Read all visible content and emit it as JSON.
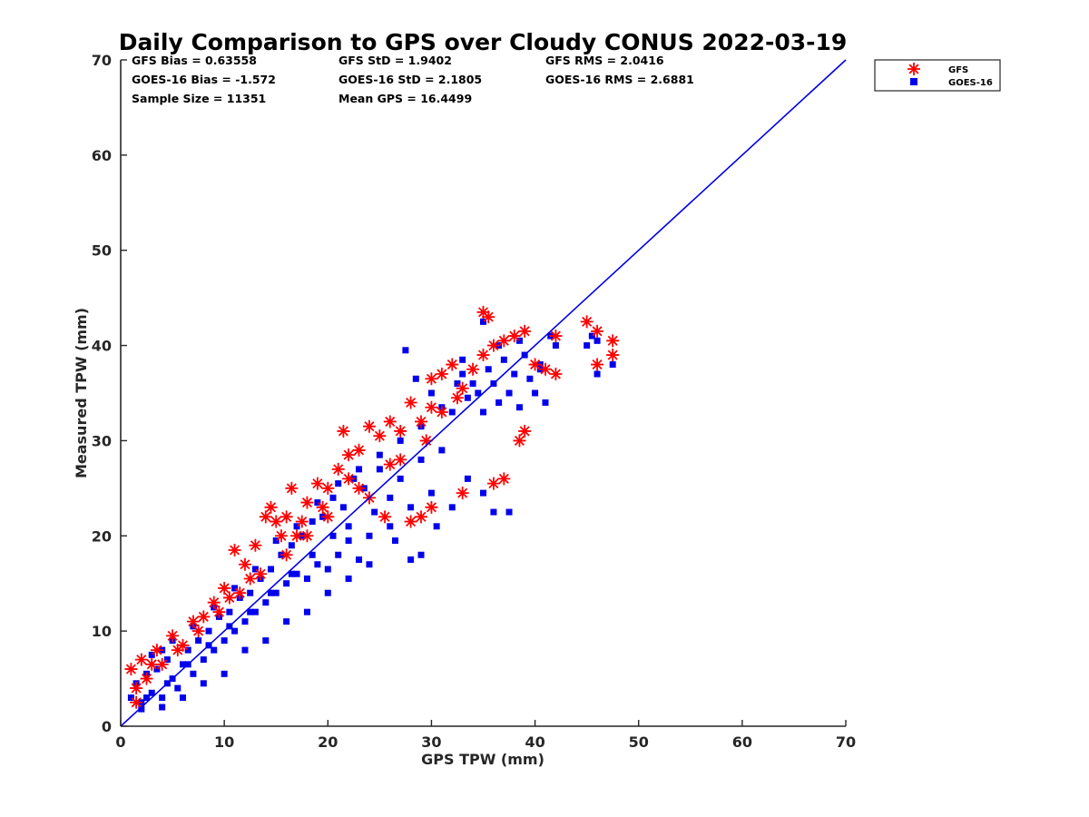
{
  "chart_data": {
    "type": "scatter",
    "title": "Daily Comparison to GPS over Cloudy CONUS 2022-03-19",
    "xlabel": "GPS TPW (mm)",
    "ylabel": "Measured TPW (mm)",
    "xlim": [
      0,
      70
    ],
    "ylim": [
      0,
      70
    ],
    "xticks": [
      "0",
      "10",
      "20",
      "30",
      "40",
      "50",
      "60",
      "70"
    ],
    "yticks": [
      "0",
      "10",
      "20",
      "30",
      "40",
      "50",
      "60",
      "70"
    ],
    "grid": false,
    "legend_position": "outside-top-right",
    "reference_line": {
      "x": [
        0,
        70
      ],
      "y": [
        0,
        70
      ],
      "color": "#0000e6"
    },
    "stats": [
      "GFS Bias = 0.63558",
      "GFS StD = 1.9402",
      "GFS RMS = 2.0416",
      "GOES-16 Bias = -1.572",
      "GOES-16 StD = 2.1805",
      "GOES-16 RMS = 2.6881",
      "Sample Size = 11351",
      "Mean GPS = 16.4499"
    ],
    "series": [
      {
        "name": "GFS",
        "marker": "asterisk",
        "color": "#ff0000",
        "points": [
          [
            1.0,
            6.0
          ],
          [
            1.5,
            4.0
          ],
          [
            2.0,
            7.0
          ],
          [
            3.0,
            6.5
          ],
          [
            3.5,
            8.0
          ],
          [
            5.0,
            9.5
          ],
          [
            6.0,
            8.5
          ],
          [
            7.0,
            11.0
          ],
          [
            8.0,
            11.5
          ],
          [
            9.0,
            13.0
          ],
          [
            10.0,
            14.5
          ],
          [
            11.0,
            18.5
          ],
          [
            12.0,
            17.0
          ],
          [
            13.0,
            19.0
          ],
          [
            14.0,
            22.0
          ],
          [
            14.5,
            23.0
          ],
          [
            15.0,
            21.5
          ],
          [
            16.0,
            22.0
          ],
          [
            16.5,
            25.0
          ],
          [
            17.0,
            20.0
          ],
          [
            18.0,
            23.5
          ],
          [
            19.0,
            25.5
          ],
          [
            20.0,
            25.0
          ],
          [
            21.0,
            27.0
          ],
          [
            21.5,
            31.0
          ],
          [
            22.0,
            28.5
          ],
          [
            23.0,
            29.0
          ],
          [
            24.0,
            31.5
          ],
          [
            25.0,
            30.5
          ],
          [
            26.0,
            32.0
          ],
          [
            27.0,
            31.0
          ],
          [
            28.0,
            34.0
          ],
          [
            29.0,
            32.0
          ],
          [
            30.0,
            33.5
          ],
          [
            30.0,
            36.5
          ],
          [
            31.0,
            37.0
          ],
          [
            32.0,
            38.0
          ],
          [
            33.0,
            35.5
          ],
          [
            34.0,
            37.5
          ],
          [
            35.0,
            39.0
          ],
          [
            35.0,
            43.5
          ],
          [
            35.5,
            43.0
          ],
          [
            36.0,
            40.0
          ],
          [
            37.0,
            40.5
          ],
          [
            38.0,
            41.0
          ],
          [
            39.0,
            41.5
          ],
          [
            40.0,
            38.0
          ],
          [
            41.0,
            37.5
          ],
          [
            42.0,
            41.0
          ],
          [
            42.0,
            37.0
          ],
          [
            45.0,
            42.5
          ],
          [
            46.0,
            41.5
          ],
          [
            46.0,
            38.0
          ],
          [
            47.5,
            40.5
          ],
          [
            47.5,
            39.0
          ],
          [
            38.5,
            30.0
          ],
          [
            39.0,
            31.0
          ],
          [
            37.0,
            26.0
          ],
          [
            36.0,
            25.5
          ],
          [
            33.0,
            24.5
          ],
          [
            29.0,
            22.0
          ],
          [
            30.0,
            23.0
          ],
          [
            28.0,
            21.5
          ],
          [
            25.5,
            22.0
          ],
          [
            24.0,
            24.0
          ],
          [
            22.0,
            26.0
          ],
          [
            20.0,
            22.0
          ],
          [
            18.0,
            20.0
          ],
          [
            16.0,
            18.0
          ],
          [
            13.5,
            16.0
          ],
          [
            11.5,
            14.0
          ],
          [
            9.5,
            12.0
          ],
          [
            7.5,
            10.0
          ],
          [
            5.5,
            8.0
          ],
          [
            4.0,
            6.5
          ],
          [
            2.5,
            5.0
          ],
          [
            1.5,
            2.5
          ],
          [
            31.0,
            33.0
          ],
          [
            32.5,
            34.5
          ],
          [
            27.0,
            28.0
          ],
          [
            29.5,
            30.0
          ],
          [
            26.0,
            27.5
          ],
          [
            23.0,
            25.0
          ],
          [
            19.5,
            23.0
          ],
          [
            17.5,
            21.5
          ],
          [
            15.5,
            20.0
          ],
          [
            12.5,
            15.5
          ],
          [
            10.5,
            13.5
          ]
        ]
      },
      {
        "name": "GOES-16",
        "marker": "square",
        "color": "#0000ee",
        "points": [
          [
            1.0,
            3.0
          ],
          [
            1.5,
            4.5
          ],
          [
            2.0,
            2.5
          ],
          [
            2.5,
            5.5
          ],
          [
            3.0,
            3.5
          ],
          [
            3.5,
            6.0
          ],
          [
            4.0,
            3.0
          ],
          [
            4.5,
            7.0
          ],
          [
            5.0,
            5.0
          ],
          [
            5.5,
            4.0
          ],
          [
            6.0,
            6.5
          ],
          [
            6.5,
            8.0
          ],
          [
            7.0,
            5.5
          ],
          [
            7.5,
            9.0
          ],
          [
            8.0,
            7.0
          ],
          [
            8.5,
            10.0
          ],
          [
            9.0,
            8.0
          ],
          [
            9.5,
            11.5
          ],
          [
            10.0,
            9.0
          ],
          [
            10.5,
            12.0
          ],
          [
            11.0,
            10.0
          ],
          [
            11.5,
            13.5
          ],
          [
            12.0,
            11.0
          ],
          [
            12.5,
            14.0
          ],
          [
            13.0,
            12.0
          ],
          [
            13.5,
            15.5
          ],
          [
            14.0,
            13.0
          ],
          [
            14.5,
            16.5
          ],
          [
            15.0,
            14.0
          ],
          [
            15.5,
            18.0
          ],
          [
            16.0,
            15.0
          ],
          [
            16.5,
            19.0
          ],
          [
            17.0,
            16.0
          ],
          [
            17.5,
            20.0
          ],
          [
            18.0,
            15.5
          ],
          [
            18.5,
            21.5
          ],
          [
            19.0,
            17.0
          ],
          [
            19.5,
            22.0
          ],
          [
            20.0,
            16.5
          ],
          [
            20.5,
            24.0
          ],
          [
            21.0,
            18.0
          ],
          [
            21.5,
            23.0
          ],
          [
            22.0,
            19.5
          ],
          [
            22.5,
            26.0
          ],
          [
            23.0,
            17.5
          ],
          [
            23.5,
            25.0
          ],
          [
            24.0,
            20.0
          ],
          [
            25.0,
            27.0
          ],
          [
            26.0,
            21.0
          ],
          [
            27.0,
            26.0
          ],
          [
            27.5,
            39.5
          ],
          [
            28.0,
            23.0
          ],
          [
            29.0,
            28.0
          ],
          [
            29.0,
            18.0
          ],
          [
            30.0,
            24.5
          ],
          [
            31.0,
            29.0
          ],
          [
            32.0,
            33.0
          ],
          [
            32.5,
            36.0
          ],
          [
            33.0,
            37.0
          ],
          [
            33.5,
            34.5
          ],
          [
            34.0,
            36.0
          ],
          [
            34.5,
            35.0
          ],
          [
            35.0,
            42.5
          ],
          [
            35.0,
            33.0
          ],
          [
            35.5,
            37.5
          ],
          [
            36.0,
            36.0
          ],
          [
            36.5,
            34.0
          ],
          [
            37.0,
            38.5
          ],
          [
            37.5,
            35.0
          ],
          [
            38.0,
            37.0
          ],
          [
            38.5,
            33.5
          ],
          [
            39.0,
            39.0
          ],
          [
            39.5,
            36.5
          ],
          [
            40.0,
            35.0
          ],
          [
            40.5,
            38.0
          ],
          [
            41.0,
            34.0
          ],
          [
            41.5,
            41.0
          ],
          [
            42.0,
            40.0
          ],
          [
            45.0,
            40.0
          ],
          [
            45.5,
            41.0
          ],
          [
            46.0,
            37.0
          ],
          [
            46.0,
            40.5
          ],
          [
            47.5,
            38.0
          ],
          [
            37.5,
            22.5
          ],
          [
            36.0,
            22.5
          ],
          [
            35.0,
            24.5
          ],
          [
            33.5,
            26.0
          ],
          [
            32.0,
            23.0
          ],
          [
            30.5,
            21.0
          ],
          [
            28.0,
            17.5
          ],
          [
            26.5,
            19.5
          ],
          [
            24.0,
            17.0
          ],
          [
            22.0,
            15.5
          ],
          [
            20.0,
            14.0
          ],
          [
            18.0,
            12.0
          ],
          [
            16.0,
            11.0
          ],
          [
            14.0,
            9.0
          ],
          [
            12.0,
            8.0
          ],
          [
            10.0,
            5.5
          ],
          [
            8.0,
            4.5
          ],
          [
            6.0,
            3.0
          ],
          [
            4.0,
            2.0
          ],
          [
            2.0,
            1.8
          ],
          [
            5.0,
            9.0
          ],
          [
            4.0,
            8.0
          ],
          [
            3.0,
            7.5
          ],
          [
            7.0,
            10.5
          ],
          [
            9.0,
            12.5
          ],
          [
            11.0,
            14.5
          ],
          [
            13.0,
            16.5
          ],
          [
            15.0,
            19.5
          ],
          [
            17.0,
            21.0
          ],
          [
            19.0,
            23.5
          ],
          [
            21.0,
            25.5
          ],
          [
            23.0,
            27.0
          ],
          [
            25.0,
            28.5
          ],
          [
            27.0,
            30.0
          ],
          [
            29.0,
            31.5
          ],
          [
            31.0,
            33.5
          ],
          [
            30.0,
            35.0
          ],
          [
            28.5,
            36.5
          ],
          [
            33.0,
            38.5
          ],
          [
            36.5,
            40.0
          ],
          [
            38.5,
            40.5
          ],
          [
            40.5,
            37.5
          ],
          [
            22.0,
            21.0
          ],
          [
            24.5,
            22.5
          ],
          [
            26.0,
            24.0
          ],
          [
            20.5,
            20.0
          ],
          [
            18.5,
            18.0
          ],
          [
            16.5,
            16.0
          ],
          [
            14.5,
            14.0
          ],
          [
            12.5,
            12.0
          ],
          [
            10.5,
            10.5
          ],
          [
            8.5,
            8.5
          ],
          [
            6.5,
            6.5
          ],
          [
            4.5,
            4.5
          ],
          [
            2.5,
            3.0
          ]
        ]
      }
    ]
  }
}
